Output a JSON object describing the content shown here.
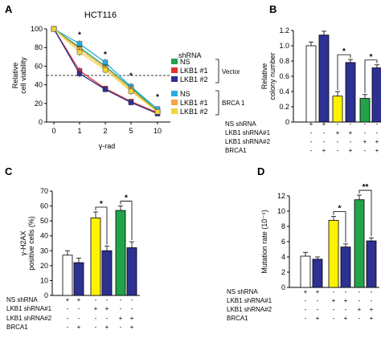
{
  "panels": [
    {
      "id": "A",
      "letter": "A",
      "title": "HCT116",
      "chart_data": {
        "type": "line",
        "title": "HCT116",
        "xlabel": "γ-rad",
        "ylabel": "Relative cell viability",
        "x": [
          0,
          1,
          2,
          5,
          10
        ],
        "x_tick_labels": [
          "0",
          "1",
          "2",
          "5",
          "10"
        ],
        "ylim": [
          0,
          100
        ],
        "y_ticks": [
          0,
          20,
          40,
          60,
          80,
          100
        ],
        "reference_line": 50,
        "legend_title": "shRNA",
        "legend_groups": [
          {
            "label": "Vector",
            "series": [
              "NS",
              "LKB1 #1",
              "LKB1 #2"
            ]
          },
          {
            "label": "BRCA 1",
            "series": [
              "NS",
              "LKB1 #1",
              "LKB1 #2"
            ]
          }
        ],
        "series": [
          {
            "name": "NS",
            "group": "Vector",
            "color": "#22a34a",
            "marker": "square",
            "values": [
              100,
              80,
              60,
              37,
              12
            ],
            "errors": [
              0,
              4,
              4,
              4,
              3
            ]
          },
          {
            "name": "LKB1 #1",
            "group": "Vector",
            "color": "#e2312f",
            "marker": "square",
            "values": [
              100,
              55,
              36,
              22,
              10
            ],
            "errors": [
              0,
              4,
              3,
              3,
              2
            ]
          },
          {
            "name": "LKB1 #2",
            "group": "Vector",
            "color": "#2e3192",
            "marker": "square",
            "values": [
              100,
              52,
              35,
              21,
              9
            ],
            "errors": [
              0,
              4,
              3,
              3,
              2
            ]
          },
          {
            "name": "NS",
            "group": "BRCA 1",
            "color": "#29abe2",
            "marker": "square",
            "values": [
              100,
              84,
              64,
              38,
              14
            ],
            "errors": [
              0,
              4,
              4,
              4,
              3
            ]
          },
          {
            "name": "LKB1 #1",
            "group": "BRCA 1",
            "color": "#f7a53c",
            "marker": "square",
            "values": [
              100,
              78,
              58,
              35,
              11
            ],
            "errors": [
              0,
              4,
              4,
              4,
              3
            ]
          },
          {
            "name": "LKB1 #2",
            "group": "BRCA 1",
            "color": "#f0d63a",
            "marker": "square",
            "values": [
              100,
              75,
              56,
              33,
              11
            ],
            "errors": [
              0,
              4,
              4,
              4,
              3
            ]
          }
        ],
        "significance": [
          {
            "x": 1,
            "y": 91,
            "label": "*"
          },
          {
            "x": 2,
            "y": 70,
            "label": "*"
          },
          {
            "x": 5,
            "y": 47,
            "label": "*"
          },
          {
            "x": 10,
            "y": 24,
            "label": "*"
          }
        ]
      }
    },
    {
      "id": "B",
      "letter": "B",
      "chart_data": {
        "type": "bar",
        "ylabel": "Relative colony number",
        "ylim": [
          0,
          1.2
        ],
        "y_ticks": [
          0,
          0.2,
          0.4,
          0.6,
          0.8,
          1.0,
          1.2
        ],
        "y_tick_labels": [
          "0",
          "0.2",
          "0.4",
          "0.6",
          "0.8",
          "1.0",
          "1.2"
        ],
        "bars": [
          {
            "value": 1.0,
            "error": 0.05,
            "color": "#ffffff"
          },
          {
            "value": 1.14,
            "error": 0.05,
            "color": "#2e3192"
          },
          {
            "value": 0.34,
            "error": 0.06,
            "color": "#fff200"
          },
          {
            "value": 0.78,
            "error": 0.04,
            "color": "#2e3192"
          },
          {
            "value": 0.31,
            "error": 0.05,
            "color": "#22a34a"
          },
          {
            "value": 0.71,
            "error": 0.04,
            "color": "#2e3192"
          }
        ],
        "brackets": [
          {
            "from": 2,
            "to": 3,
            "label": "*"
          },
          {
            "from": 4,
            "to": 5,
            "label": "*"
          }
        ],
        "condition_rows": [
          {
            "label": "NS shRNA",
            "marks": [
              "+",
              "+",
              "-",
              "-",
              "-",
              "-"
            ]
          },
          {
            "label": "LKB1 shRNA#1",
            "marks": [
              "-",
              "-",
              "+",
              "+",
              "-",
              "-"
            ]
          },
          {
            "label": "LKB1 shRNA#2",
            "marks": [
              "-",
              "-",
              "-",
              "-",
              "+",
              "+"
            ]
          },
          {
            "label": "BRCA1",
            "marks": [
              "-",
              "+",
              "-",
              "+",
              "-",
              "+"
            ]
          }
        ]
      }
    },
    {
      "id": "C",
      "letter": "C",
      "chart_data": {
        "type": "bar",
        "ylabel": "γ-H2AX positive cells (%)",
        "ylim": [
          0,
          70
        ],
        "y_ticks": [
          0,
          10,
          20,
          30,
          40,
          50,
          60,
          70
        ],
        "y_tick_labels": [
          "0",
          "10",
          "20",
          "30",
          "40",
          "50",
          "60",
          "70"
        ],
        "bars": [
          {
            "value": 27,
            "error": 3,
            "color": "#ffffff"
          },
          {
            "value": 22,
            "error": 3,
            "color": "#2e3192"
          },
          {
            "value": 52,
            "error": 4,
            "color": "#fff200"
          },
          {
            "value": 30,
            "error": 3,
            "color": "#2e3192"
          },
          {
            "value": 57,
            "error": 3,
            "color": "#22a34a"
          },
          {
            "value": 32,
            "error": 4,
            "color": "#2e3192"
          }
        ],
        "brackets": [
          {
            "from": 2,
            "to": 3,
            "label": "*"
          },
          {
            "from": 4,
            "to": 5,
            "label": "*"
          }
        ],
        "condition_rows": [
          {
            "label": "NS shRNA",
            "marks": [
              "+",
              "+",
              "-",
              "-",
              "-",
              "-"
            ]
          },
          {
            "label": "LKB1 shRNA#1",
            "marks": [
              "-",
              "-",
              "+",
              "+",
              "-",
              "-"
            ]
          },
          {
            "label": "LKB1 shRNA#2",
            "marks": [
              "-",
              "-",
              "-",
              "-",
              "+",
              "+"
            ]
          },
          {
            "label": "BRCA1",
            "marks": [
              "-",
              "+",
              "-",
              "+",
              "-",
              "+"
            ]
          }
        ]
      }
    },
    {
      "id": "D",
      "letter": "D",
      "chart_data": {
        "type": "bar",
        "ylabel": "Mutation rate (10⁻⁵)",
        "ylim": [
          0,
          12
        ],
        "y_ticks": [
          0,
          2,
          4,
          6,
          8,
          10,
          12
        ],
        "y_tick_labels": [
          "0",
          "2",
          "4",
          "6",
          "8",
          "10",
          "12"
        ],
        "bars": [
          {
            "value": 4.1,
            "error": 0.5,
            "color": "#ffffff"
          },
          {
            "value": 3.7,
            "error": 0.3,
            "color": "#2e3192"
          },
          {
            "value": 8.8,
            "error": 0.5,
            "color": "#fff200"
          },
          {
            "value": 5.3,
            "error": 0.4,
            "color": "#2e3192"
          },
          {
            "value": 11.5,
            "error": 0.6,
            "color": "#22a34a"
          },
          {
            "value": 6.1,
            "error": 0.4,
            "color": "#2e3192"
          }
        ],
        "brackets": [
          {
            "from": 2,
            "to": 3,
            "label": "*"
          },
          {
            "from": 4,
            "to": 5,
            "label": "**"
          }
        ],
        "condition_rows": [
          {
            "label": "NS shRNA",
            "marks": [
              "+",
              "+",
              "-",
              "-",
              "-",
              "-"
            ]
          },
          {
            "label": "LKB1 shRNA#1",
            "marks": [
              "-",
              "-",
              "+",
              "+",
              "-",
              "-"
            ]
          },
          {
            "label": "LKB1 shRNA#2",
            "marks": [
              "-",
              "-",
              "-",
              "-",
              "+",
              "+"
            ]
          },
          {
            "label": "BRCA1",
            "marks": [
              "-",
              "+",
              "-",
              "+",
              "-",
              "+"
            ]
          }
        ]
      }
    }
  ]
}
